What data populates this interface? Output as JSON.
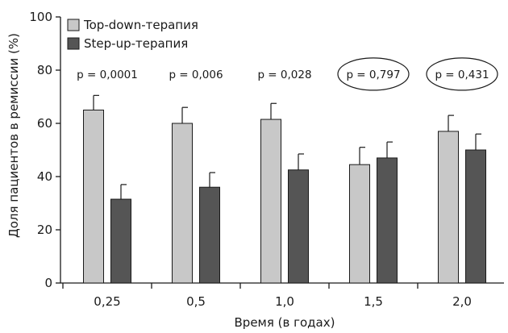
{
  "chart_data": {
    "type": "bar",
    "categories": [
      "0,25",
      "0,5",
      "1,0",
      "1,5",
      "2,0"
    ],
    "series": [
      {
        "name": "Top-down-терапия",
        "color": "#c8c8c8",
        "values": [
          65,
          60,
          61.5,
          44.5,
          57
        ],
        "error": [
          5.5,
          6,
          6,
          6.5,
          6
        ]
      },
      {
        "name": "Step-up-терапия",
        "color": "#555555",
        "values": [
          31.5,
          36,
          42.5,
          47,
          50
        ],
        "error": [
          5.5,
          5.5,
          6,
          6,
          6
        ]
      }
    ],
    "annotations": [
      {
        "category": "0,25",
        "text": "p = 0,0001",
        "circled": false
      },
      {
        "category": "0,5",
        "text": "p = 0,006",
        "circled": false
      },
      {
        "category": "1,0",
        "text": "p = 0,028",
        "circled": false
      },
      {
        "category": "1,5",
        "text": "p = 0,797",
        "circled": true
      },
      {
        "category": "2,0",
        "text": "p = 0,431",
        "circled": true
      }
    ],
    "xlabel": "Время (в годах)",
    "ylabel": "Доля пациентов в ремиссии (%)",
    "ylim": [
      0,
      100
    ],
    "yticks": [
      0,
      20,
      40,
      60,
      80,
      100
    ],
    "grid": false,
    "legend_position": "top-left"
  }
}
